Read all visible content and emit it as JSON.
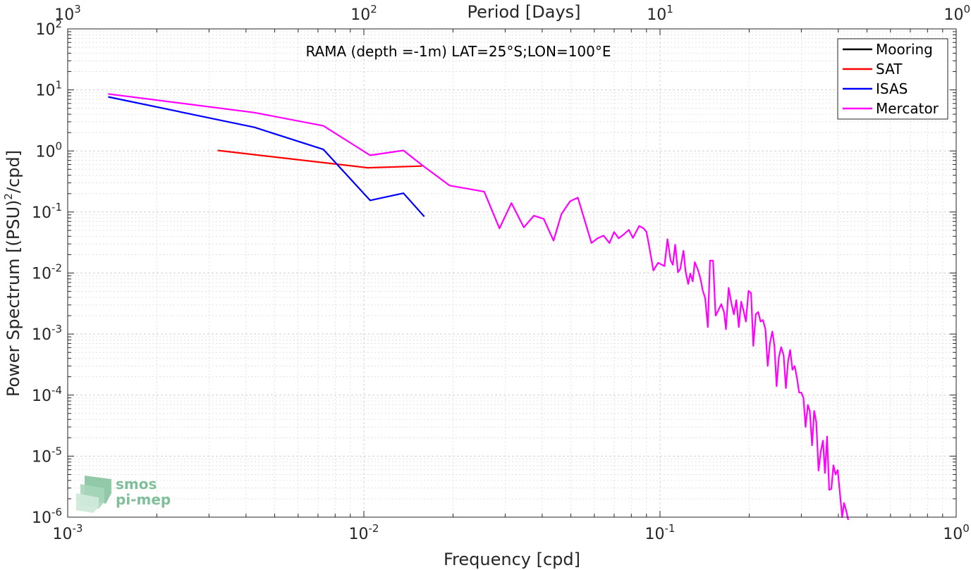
{
  "chart_data": {
    "type": "line",
    "title": "RAMA (depth =-1m) LAT=25°S;LON=100°E",
    "xlabel": "Frequency [cpd]",
    "ylabel": "Power Spectrum [(PSU)^2/cpd]",
    "ylabel_parts": {
      "pre": "Power Spectrum [(PSU)",
      "sup": "2",
      "post": "/cpd]"
    },
    "x2label": "Period [Days]",
    "xscale": "log",
    "yscale": "log",
    "xlim": [
      0.001,
      1
    ],
    "ylim": [
      1e-06,
      100
    ],
    "grid": true,
    "legend_position": "top-right",
    "x_ticks": [
      {
        "base": "10",
        "exp": "-3",
        "value": 0.001
      },
      {
        "base": "10",
        "exp": "-2",
        "value": 0.01
      },
      {
        "base": "10",
        "exp": "-1",
        "value": 0.1
      },
      {
        "base": "10",
        "exp": "0",
        "value": 1
      }
    ],
    "x2_ticks": [
      {
        "base": "10",
        "exp": "3",
        "value": 1000
      },
      {
        "base": "10",
        "exp": "2",
        "value": 100
      },
      {
        "base": "10",
        "exp": "1",
        "value": 10
      },
      {
        "base": "10",
        "exp": "0",
        "value": 1
      }
    ],
    "y_ticks": [
      {
        "base": "10",
        "exp": "2",
        "value": 100
      },
      {
        "base": "10",
        "exp": "1",
        "value": 10
      },
      {
        "base": "10",
        "exp": "0",
        "value": 1
      },
      {
        "base": "10",
        "exp": "-1",
        "value": 0.1
      },
      {
        "base": "10",
        "exp": "-2",
        "value": 0.01
      },
      {
        "base": "10",
        "exp": "-3",
        "value": 0.001
      },
      {
        "base": "10",
        "exp": "-4",
        "value": 0.0001
      },
      {
        "base": "10",
        "exp": "-5",
        "value": 1e-05
      },
      {
        "base": "10",
        "exp": "-6",
        "value": 1e-06
      }
    ],
    "series": [
      {
        "name": "Mooring",
        "color": "#000000",
        "points": []
      },
      {
        "name": "SAT",
        "color": "#ff0000",
        "points": [
          [
            0.00321,
            1.02
          ],
          [
            0.0103,
            0.53
          ],
          [
            0.0157,
            0.565
          ]
        ]
      },
      {
        "name": "ISAS",
        "color": "#0000ff",
        "points": [
          [
            0.00137,
            7.7
          ],
          [
            0.00427,
            2.44
          ],
          [
            0.0073,
            1.06
          ],
          [
            0.0105,
            0.155
          ],
          [
            0.0136,
            0.203
          ],
          [
            0.016,
            0.084
          ]
        ]
      },
      {
        "name": "Mercator",
        "color": "#ff00ff",
        "points": [
          [
            0.00137,
            8.61
          ],
          [
            0.00427,
            4.25
          ],
          [
            0.0073,
            2.58
          ],
          [
            0.0105,
            0.849
          ],
          [
            0.0136,
            1.02
          ],
          [
            0.0157,
            0.59
          ],
          [
            0.0167,
            0.472
          ],
          [
            0.0195,
            0.271
          ],
          [
            0.0225,
            0.24
          ],
          [
            0.0255,
            0.215
          ],
          [
            0.0287,
            0.054
          ],
          [
            0.0315,
            0.14
          ],
          [
            0.0347,
            0.056
          ],
          [
            0.0375,
            0.087
          ],
          [
            0.0405,
            0.077
          ],
          [
            0.0437,
            0.034
          ],
          [
            0.0465,
            0.093
          ],
          [
            0.0497,
            0.15
          ],
          [
            0.0528,
            0.172
          ],
          [
            0.0587,
            0.031
          ],
          [
            0.0615,
            0.037
          ],
          [
            0.0645,
            0.041
          ],
          [
            0.0675,
            0.031
          ],
          [
            0.07,
            0.047
          ],
          [
            0.0725,
            0.037
          ],
          [
            0.0755,
            0.043
          ],
          [
            0.0785,
            0.051
          ],
          [
            0.081,
            0.0376
          ],
          [
            0.085,
            0.059
          ],
          [
            0.088,
            0.054
          ],
          [
            0.09,
            0.047
          ],
          [
            0.0915,
            0.031
          ],
          [
            0.095,
            0.011
          ],
          [
            0.0985,
            0.0147
          ],
          [
            0.101,
            0.0138
          ],
          [
            0.1035,
            0.013
          ],
          [
            0.106,
            0.0358
          ],
          [
            0.1085,
            0.0164
          ],
          [
            0.1105,
            0.0136
          ],
          [
            0.1125,
            0.0292
          ],
          [
            0.115,
            0.0103
          ],
          [
            0.117,
            0.0116
          ],
          [
            0.12,
            0.0232
          ],
          [
            0.122,
            0.0105
          ],
          [
            0.1245,
            0.0066
          ],
          [
            0.1265,
            0.0098
          ],
          [
            0.129,
            0.0073
          ],
          [
            0.131,
            0.0151
          ],
          [
            0.1345,
            0.011
          ],
          [
            0.137,
            0.008
          ],
          [
            0.1395,
            0.0051
          ],
          [
            0.142,
            0.0039
          ],
          [
            0.145,
            0.0013
          ],
          [
            0.1475,
            0.016
          ],
          [
            0.151,
            0.016
          ],
          [
            0.154,
            0.002
          ],
          [
            0.157,
            0.0024
          ],
          [
            0.161,
            0.0031
          ],
          [
            0.1645,
            0.0023
          ],
          [
            0.167,
            0.0012
          ],
          [
            0.1705,
            0.0057
          ],
          [
            0.174,
            0.0033
          ],
          [
            0.1775,
            0.0021
          ],
          [
            0.181,
            0.0036
          ],
          [
            0.1845,
            0.0013
          ],
          [
            0.188,
            0.0034
          ],
          [
            0.1915,
            0.0024
          ],
          [
            0.195,
            0.0016
          ],
          [
            0.199,
            0.0051
          ],
          [
            0.203,
            0.0047
          ],
          [
            0.2065,
            0.00064
          ],
          [
            0.2105,
            0.0021
          ],
          [
            0.2145,
            0.0023
          ],
          [
            0.2185,
            0.0016
          ],
          [
            0.2225,
            0.0017
          ],
          [
            0.227,
            0.0012
          ],
          [
            0.231,
            0.0003
          ],
          [
            0.235,
            0.0007
          ],
          [
            0.2395,
            0.0011
          ],
          [
            0.2435,
            0.00064
          ],
          [
            0.2475,
            0.00014
          ],
          [
            0.252,
            0.00042
          ],
          [
            0.2565,
            0.00061
          ],
          [
            0.2615,
            0.00045
          ],
          [
            0.266,
            0.00013
          ],
          [
            0.2705,
            0.00035
          ],
          [
            0.275,
            0.00055
          ],
          [
            0.28,
            0.00026
          ],
          [
            0.285,
            0.0003
          ],
          [
            0.29,
            0.00019
          ],
          [
            0.295,
            0.00011
          ],
          [
            0.3,
            0.00011
          ],
          [
            0.305,
            9e-05
          ],
          [
            0.31,
            3e-05
          ],
          [
            0.3155,
            6.9e-05
          ],
          [
            0.3205,
            5.5e-05
          ],
          [
            0.326,
            1.5e-05
          ],
          [
            0.3315,
            5.5e-05
          ],
          [
            0.337,
            3.6e-05
          ],
          [
            0.343,
            5.8e-06
          ],
          [
            0.349,
            1.2e-05
          ],
          [
            0.355,
            1.8e-05
          ],
          [
            0.3605,
            5.3e-06
          ],
          [
            0.3665,
            2.1e-05
          ],
          [
            0.3725,
            2.8e-06
          ],
          [
            0.379,
            2.9e-06
          ],
          [
            0.385,
            7.1e-06
          ],
          [
            0.3915,
            5e-06
          ],
          [
            0.398,
            5.9e-06
          ],
          [
            0.405,
            2.5e-06
          ],
          [
            0.412,
            1e-06
          ],
          [
            0.418,
            1.7e-06
          ],
          [
            0.425,
            1.3e-06
          ],
          [
            0.432,
            9e-07
          ]
        ]
      }
    ]
  },
  "logo": {
    "line1": "smos",
    "line2": "pi-mep"
  }
}
